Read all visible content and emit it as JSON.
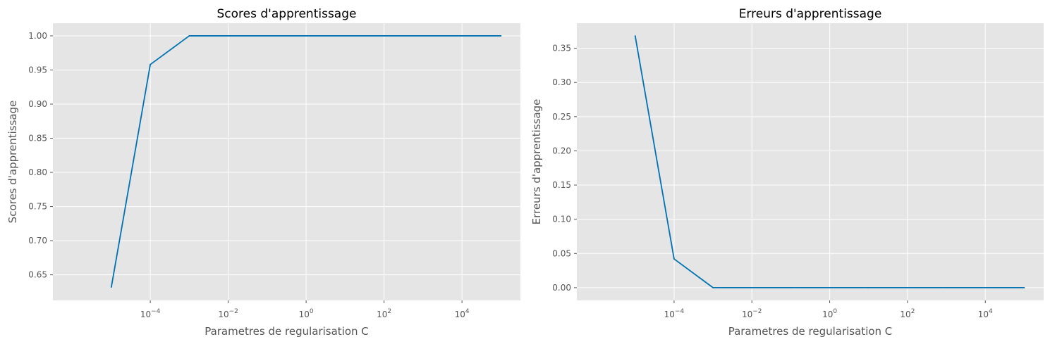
{
  "chart_data": [
    {
      "type": "line",
      "title": "Scores d'apprentissage",
      "xlabel": "Parametres de regularisation C",
      "ylabel": "Scores d'apprentissage",
      "xscale": "log",
      "xlim_exp": [
        -6.5,
        5.5
      ],
      "ylim": [
        0.6125,
        1.0185
      ],
      "xticks": [
        {
          "base": "10",
          "exp": "−4",
          "e": -4
        },
        {
          "base": "10",
          "exp": "−2",
          "e": -2
        },
        {
          "base": "10",
          "exp": "0",
          "e": 0
        },
        {
          "base": "10",
          "exp": "2",
          "e": 2
        },
        {
          "base": "10",
          "exp": "4",
          "e": 4
        }
      ],
      "yticks": [
        "0.65",
        "0.70",
        "0.75",
        "0.80",
        "0.85",
        "0.90",
        "0.95",
        "1.00"
      ],
      "grid": true,
      "line_color": "#0072B2",
      "x_exp": [
        -5,
        -4,
        -3,
        -2,
        -1,
        0,
        1,
        2,
        3,
        4,
        5
      ],
      "y": [
        0.632,
        0.958,
        1.0,
        1.0,
        1.0,
        1.0,
        1.0,
        1.0,
        1.0,
        1.0,
        1.0
      ]
    },
    {
      "type": "line",
      "title": "Erreurs d'apprentissage",
      "xlabel": "Parametres de regularisation C",
      "ylabel": "Erreurs d'apprentissage",
      "xscale": "log",
      "xlim_exp": [
        -6.5,
        5.5
      ],
      "ylim": [
        -0.0186,
        0.3866
      ],
      "xticks": [
        {
          "base": "10",
          "exp": "−4",
          "e": -4
        },
        {
          "base": "10",
          "exp": "−2",
          "e": -2
        },
        {
          "base": "10",
          "exp": "0",
          "e": 0
        },
        {
          "base": "10",
          "exp": "2",
          "e": 2
        },
        {
          "base": "10",
          "exp": "4",
          "e": 4
        }
      ],
      "yticks": [
        "0.00",
        "0.05",
        "0.10",
        "0.15",
        "0.20",
        "0.25",
        "0.30",
        "0.35"
      ],
      "grid": true,
      "line_color": "#0072B2",
      "x_exp": [
        -5,
        -4,
        -3,
        -2,
        -1,
        0,
        1,
        2,
        3,
        4,
        5
      ],
      "y": [
        0.368,
        0.042,
        0.0,
        0.0,
        0.0,
        0.0,
        0.0,
        0.0,
        0.0,
        0.0,
        0.0
      ]
    }
  ]
}
